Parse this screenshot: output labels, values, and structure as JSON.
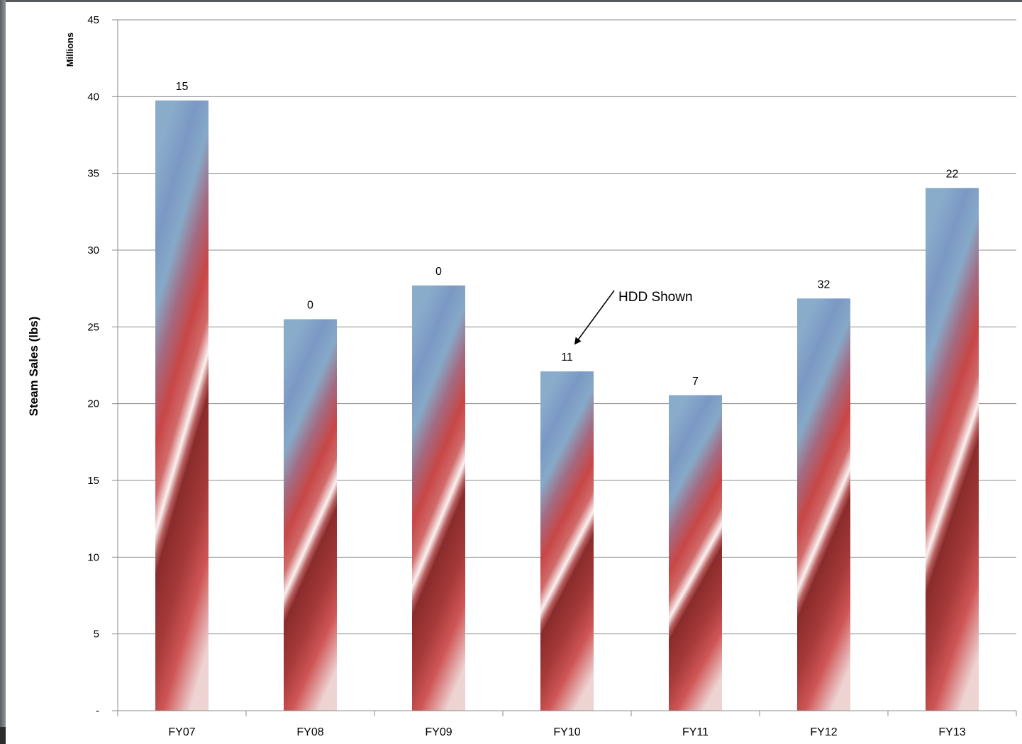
{
  "chart_data": {
    "type": "bar",
    "title": "",
    "xlabel": "",
    "ylabel": "Steam Sales (lbs)",
    "y_unit_label": "Millions",
    "ylim": [
      0,
      45
    ],
    "y_ticks": [
      0,
      5,
      10,
      15,
      20,
      25,
      30,
      35,
      40,
      45
    ],
    "y_tick_labels": [
      "-",
      "5",
      "10",
      "15",
      "20",
      "25",
      "30",
      "35",
      "40",
      "45"
    ],
    "categories": [
      "FY07",
      "FY08",
      "FY09",
      "FY10",
      "FY11",
      "FY12",
      "FY13"
    ],
    "series": [
      {
        "values": [
          39.75,
          25.5,
          27.7,
          22.1,
          20.55,
          26.85,
          34.05
        ],
        "data_labels": [
          "15",
          "0",
          "0",
          "11",
          "7",
          "32",
          "22"
        ]
      }
    ],
    "grid": true,
    "annotation": {
      "text": "HDD Shown",
      "target_category": "FY10"
    },
    "colors": {
      "bar_top": "#8aaccb",
      "bar_mid_blue": "#7b98c4",
      "bar_red": "#c84c4c",
      "bar_dark_red": "#8a2b2b",
      "bar_highlight": "#fbeeee",
      "grid": "#8c8c8c",
      "axis": "#8c8c8c",
      "text": "#000000"
    }
  }
}
